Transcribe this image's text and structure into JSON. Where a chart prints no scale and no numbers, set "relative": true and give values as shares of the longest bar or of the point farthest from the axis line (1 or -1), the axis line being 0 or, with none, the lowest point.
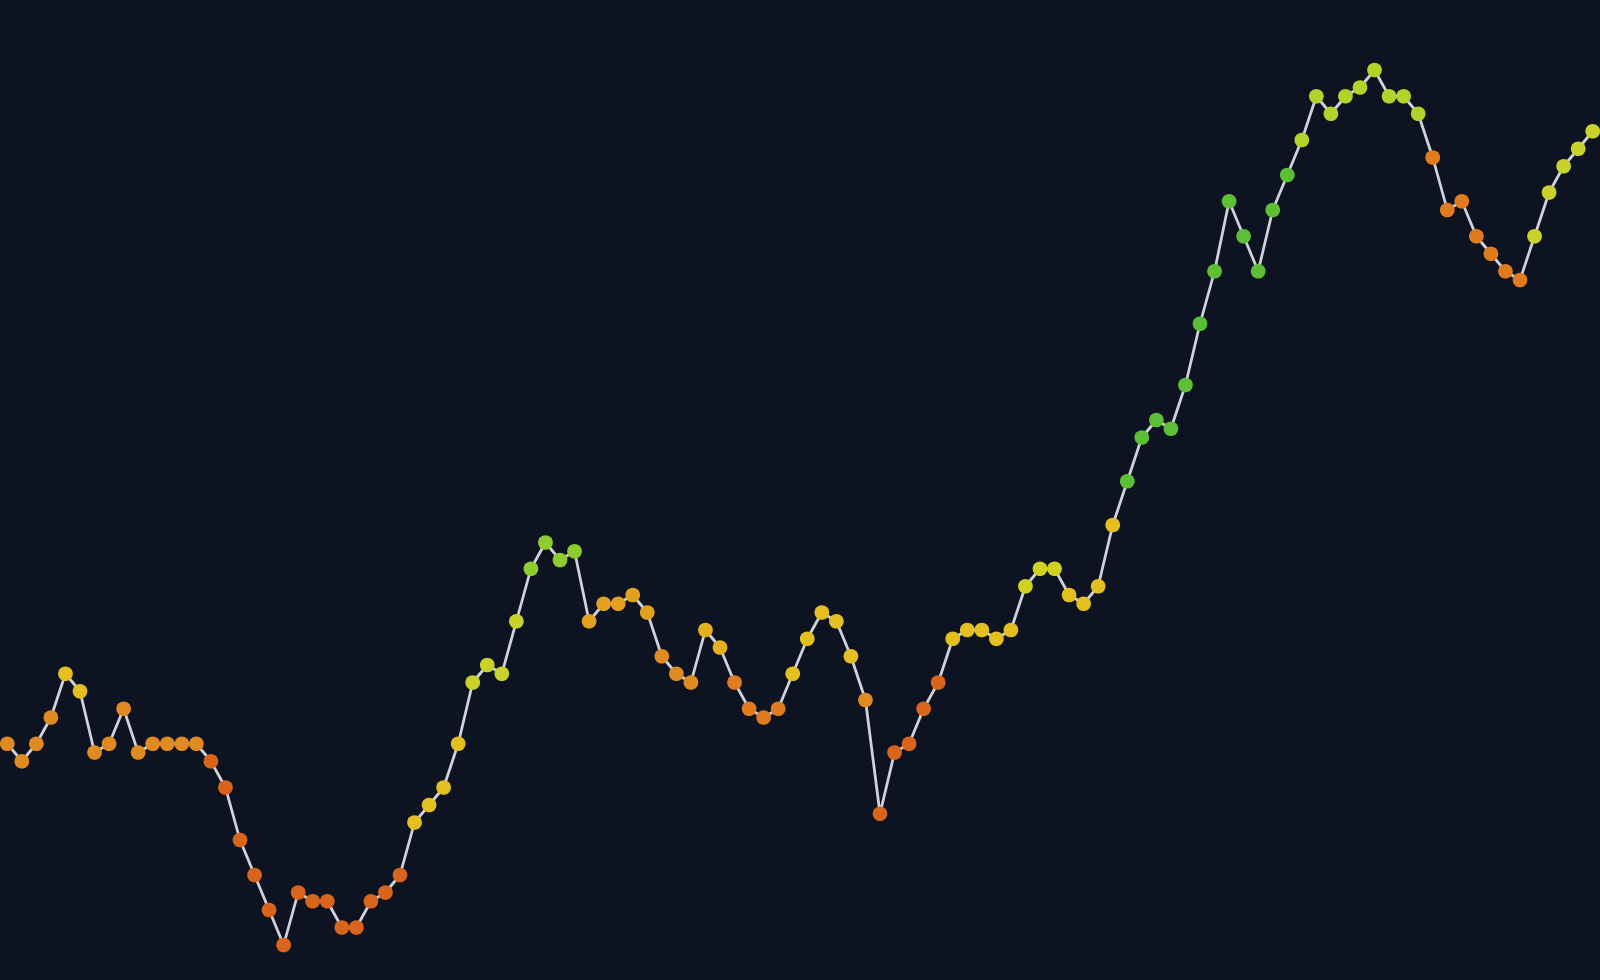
{
  "chart_data": {
    "type": "line",
    "relative": true,
    "marker": "circle",
    "line_style": "solid",
    "legend": false,
    "categories": [
      null,
      null,
      null,
      null,
      null,
      null,
      null,
      null,
      null,
      null,
      null,
      null,
      null,
      null,
      null,
      null,
      null,
      null,
      null,
      null,
      null,
      null,
      null,
      null,
      null,
      null,
      null,
      null,
      null,
      null,
      null,
      null,
      null,
      null,
      null,
      null,
      null,
      null,
      null,
      null,
      null,
      null,
      null,
      null,
      null,
      null,
      null,
      null,
      null,
      null,
      null,
      null,
      null,
      null,
      null,
      null,
      null,
      null,
      null,
      null,
      null,
      null,
      null,
      null,
      null,
      null,
      null,
      null,
      null,
      null,
      null,
      null,
      null,
      null,
      null,
      null,
      null,
      null,
      null,
      null,
      null,
      null,
      null,
      null,
      null,
      null,
      null,
      null,
      null,
      null,
      null,
      null,
      null,
      null,
      null,
      null,
      null,
      null,
      null,
      null,
      null,
      null,
      null,
      null,
      null,
      null,
      null,
      null,
      null,
      null
    ],
    "series": [
      {
        "color": "#cfd3da",
        "values": [
          0.23,
          0.21,
          0.23,
          0.26,
          0.31,
          0.29,
          0.22,
          0.23,
          0.27,
          0.22,
          0.23,
          0.23,
          0.23,
          0.23,
          0.21,
          0.18,
          0.12,
          0.08,
          0.04,
          0,
          0.06,
          0.05,
          0.05,
          0.02,
          0.02,
          0.05,
          0.06,
          0.08,
          0.14,
          0.16,
          0.18,
          0.23,
          0.3,
          0.32,
          0.31,
          0.37,
          0.43,
          0.46,
          0.44,
          0.45,
          0.37,
          0.39,
          0.39,
          0.4,
          0.38,
          0.33,
          0.31,
          0.3,
          0.36,
          0.34,
          0.3,
          0.27,
          0.26,
          0.27,
          0.31,
          0.35,
          0.38,
          0.37,
          0.33,
          0.28,
          0.15,
          0.22,
          0.23,
          0.27,
          0.3,
          0.35,
          0.36,
          0.36,
          0.35,
          0.36,
          0.41,
          0.43,
          0.43,
          0.4,
          0.39,
          0.41,
          0.48,
          0.53,
          0.58,
          0.6,
          0.59,
          0.64,
          0.71,
          0.77,
          0.85,
          0.81,
          0.77,
          0.84,
          0.88,
          0.92,
          0.97,
          0.95,
          0.97,
          0.98,
          1,
          0.97,
          0.97,
          0.95,
          0.9,
          0.84,
          0.85,
          0.81,
          0.79,
          0.77,
          0.76,
          0.81,
          0.86,
          0.89,
          0.91,
          0.93
        ],
        "colors": [
          "#e08a22",
          "#e08a22",
          "#e08a22",
          "#e08a22",
          "#e3c020",
          "#e3c020",
          "#e08a22",
          "#e08a22",
          "#e08a22",
          "#e08a22",
          "#e08a22",
          "#e08a22",
          "#e08a22",
          "#e08a22",
          "#d9651c",
          "#d9651c",
          "#d9651c",
          "#d9651c",
          "#d9651c",
          "#d9651c",
          "#d9651c",
          "#d9651c",
          "#d9651c",
          "#d9651c",
          "#d9651c",
          "#d9651c",
          "#d9651c",
          "#d9651c",
          "#e3c020",
          "#e3c020",
          "#e3c020",
          "#e3c020",
          "#c8d22a",
          "#c8d22a",
          "#c8d22a",
          "#c8d22a",
          "#8fcc30",
          "#8fcc30",
          "#8fcc30",
          "#8fcc30",
          "#e3a020",
          "#e3a020",
          "#e3a020",
          "#e3a020",
          "#e3a020",
          "#e08a22",
          "#e08a22",
          "#e08a22",
          "#e3b020",
          "#e3b020",
          "#e07b20",
          "#e07b20",
          "#e07b20",
          "#e07b20",
          "#e3c020",
          "#e3c020",
          "#e3c020",
          "#e3c020",
          "#e3c020",
          "#e08a22",
          "#d9651c",
          "#d9651c",
          "#d9651c",
          "#d9651c",
          "#d9651c",
          "#e3c020",
          "#e3c020",
          "#e3c020",
          "#e3c020",
          "#e3c020",
          "#cfd020",
          "#cfd020",
          "#cfd020",
          "#e3c020",
          "#e3c020",
          "#e3c020",
          "#e3c020",
          "#5cbf35",
          "#5cbf35",
          "#5cbf35",
          "#5cbf35",
          "#5cbf35",
          "#5cbf35",
          "#5cbf35",
          "#5cbf35",
          "#5cbf35",
          "#5cbf35",
          "#5cbf35",
          "#5cbf35",
          "#b5d22a",
          "#b5d22a",
          "#b5d22a",
          "#b5d22a",
          "#b5d22a",
          "#b5d22a",
          "#b5d22a",
          "#b5d22a",
          "#b5d22a",
          "#e07b20",
          "#e07b20",
          "#e07b20",
          "#e07b20",
          "#e07b20",
          "#e07b20",
          "#e07b20",
          "#c8d22a",
          "#c8d22a",
          "#c8d22a",
          "#c8d22a",
          "#c8d22a"
        ]
      }
    ]
  }
}
